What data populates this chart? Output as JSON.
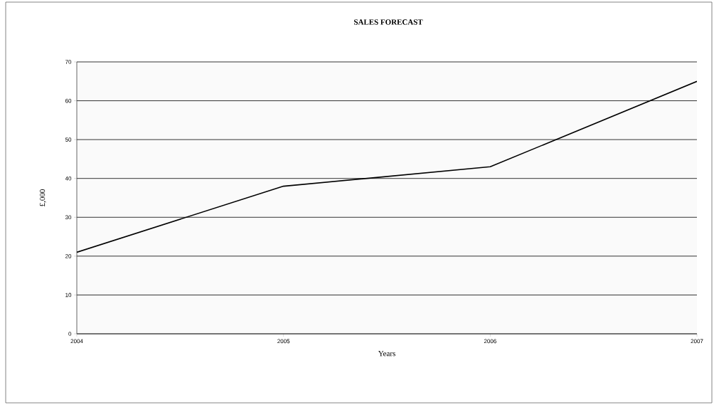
{
  "chart_data": {
    "type": "line",
    "title": "SALES FORECAST",
    "xlabel": "Years",
    "ylabel": "£,000",
    "x": [
      2004,
      2005,
      2006,
      2007
    ],
    "series": [
      {
        "color": "#000000",
        "values": [
          21,
          38,
          43,
          65
        ]
      }
    ],
    "xlim": [
      2004,
      2007
    ],
    "xticks": [
      2004,
      2005,
      2006,
      2007
    ],
    "ylim": [
      0,
      70
    ],
    "yticks": [
      0,
      10,
      20,
      30,
      40,
      50,
      60,
      70
    ],
    "grid": "y",
    "marker": "none",
    "line_style": "solid"
  }
}
